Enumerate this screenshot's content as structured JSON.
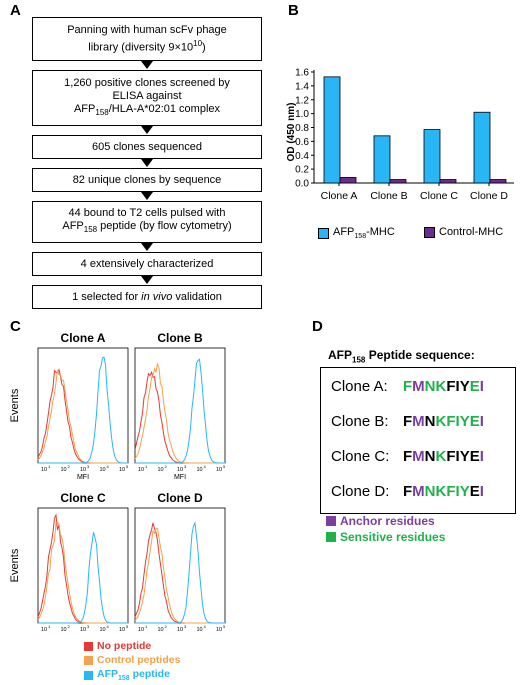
{
  "panels": {
    "a": "A",
    "b": "B",
    "c": "C",
    "d": "D"
  },
  "flowchart": [
    [
      "Panning with human scFv phage",
      "library (diversity 9×10",
      "10",
      ")"
    ],
    [
      "1,260 positive clones screened by",
      "ELISA against",
      "AFP",
      "158",
      "/HLA-A*02:01 complex"
    ],
    [
      "605 clones sequenced"
    ],
    [
      "82 unique clones by sequence"
    ],
    [
      "44 bound to T2 cells pulsed with",
      "AFP",
      "158",
      " peptide (by flow cytometry)"
    ],
    [
      "4 extensively characterized"
    ],
    [
      "1 selected for ",
      "in vivo",
      " validation"
    ]
  ],
  "chart_data": {
    "type": "bar",
    "ylabel": "OD (450 nm)",
    "ylim": [
      0,
      1.6
    ],
    "yticks": [
      "0.0",
      "0.2",
      "0.4",
      "0.6",
      "0.8",
      "1.0",
      "1.2",
      "1.4",
      "1.6"
    ],
    "categories": [
      "Clone A",
      "Clone B",
      "Clone C",
      "Clone D"
    ],
    "series": [
      {
        "name": "AFP158-MHC",
        "label_main": "AFP",
        "label_sub": "158",
        "label_rest": "-MHC",
        "color": "#29b6f6",
        "values": [
          1.53,
          0.68,
          0.77,
          1.02
        ]
      },
      {
        "name": "Control-MHC",
        "label_main": "Control-MHC",
        "color": "#6a2c91",
        "values": [
          0.08,
          0.05,
          0.05,
          0.05
        ]
      }
    ]
  },
  "flow": {
    "panels": [
      "Clone A",
      "Clone B",
      "Clone C",
      "Clone D"
    ],
    "ylabel": "Events",
    "xlabel": "MFI",
    "ticks": [
      "10",
      "1",
      "10",
      "2",
      "10",
      "3",
      "10",
      "4",
      "10",
      "5"
    ],
    "legend": [
      {
        "label": "No peptide",
        "color": "#e53935"
      },
      {
        "label": "Control peptides",
        "color": "#f4a24b"
      },
      {
        "label": "AFP",
        "sub": "158",
        "rest": " peptide",
        "color": "#29b6f6"
      }
    ]
  },
  "peptides": {
    "title_main": "AFP",
    "title_sub": "158",
    "title_rest": " Peptide sequence:",
    "rows": [
      {
        "clone": "Clone A:",
        "residues": [
          "F",
          "M",
          "N",
          "K",
          "F",
          "I",
          "Y",
          "E",
          "I"
        ],
        "colors": [
          "g",
          "p",
          "g",
          "g",
          "k",
          "k",
          "k",
          "g",
          "p"
        ]
      },
      {
        "clone": "Clone B:",
        "residues": [
          "F",
          "M",
          "N",
          "K",
          "F",
          "I",
          "Y",
          "E",
          "I"
        ],
        "colors": [
          "k",
          "p",
          "k",
          "g",
          "g",
          "g",
          "g",
          "g",
          "p"
        ]
      },
      {
        "clone": "Clone C:",
        "residues": [
          "F",
          "M",
          "N",
          "K",
          "F",
          "I",
          "Y",
          "E",
          "I"
        ],
        "colors": [
          "k",
          "p",
          "k",
          "g",
          "k",
          "k",
          "k",
          "k",
          "p"
        ]
      },
      {
        "clone": "Clone D:",
        "residues": [
          "F",
          "M",
          "N",
          "K",
          "F",
          "I",
          "Y",
          "E",
          "I"
        ],
        "colors": [
          "k",
          "p",
          "g",
          "g",
          "g",
          "g",
          "g",
          "k",
          "p"
        ]
      }
    ],
    "legend": [
      {
        "label": "Anchor residues",
        "color": "#7b3fa0"
      },
      {
        "label": "Sensitive residues",
        "color": "#1fb24a"
      }
    ]
  }
}
